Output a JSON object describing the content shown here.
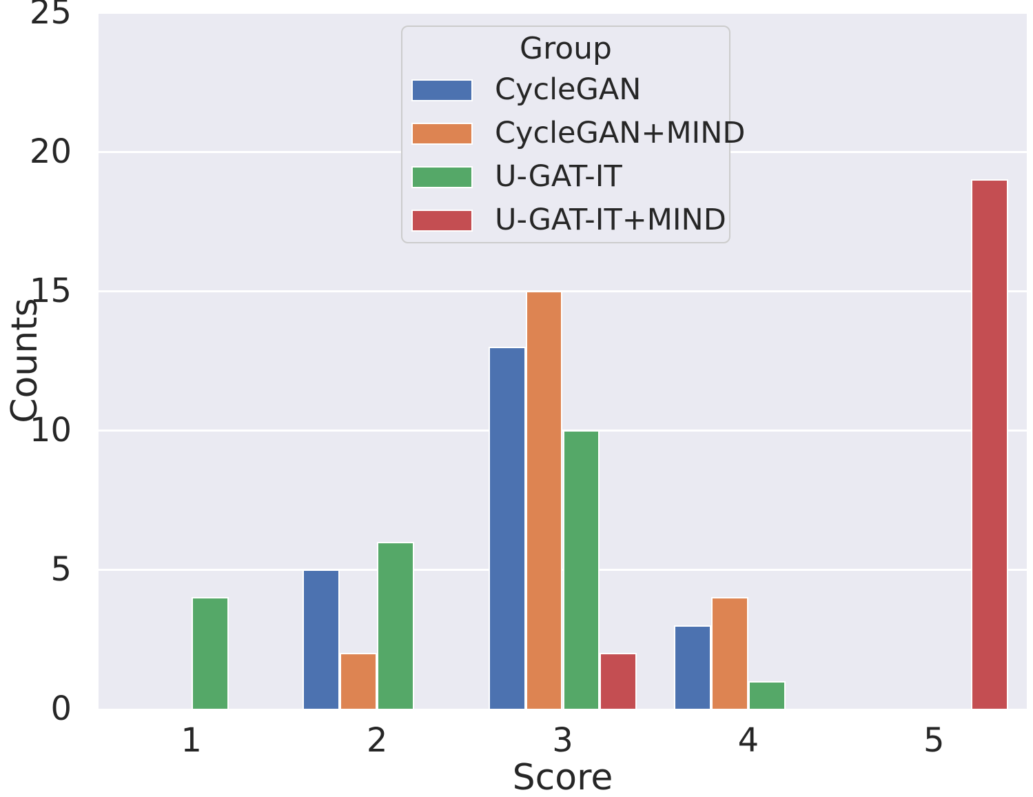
{
  "chart_data": {
    "type": "bar",
    "title": "",
    "xlabel": "Score",
    "ylabel": "Counts",
    "categories": [
      "1",
      "2",
      "3",
      "4",
      "5"
    ],
    "series": [
      {
        "name": "CycleGAN",
        "color": "#4c72b0",
        "values": [
          0,
          5,
          13,
          3,
          0
        ]
      },
      {
        "name": "CycleGAN+MIND",
        "color": "#dd8452",
        "values": [
          0,
          2,
          15,
          4,
          0
        ]
      },
      {
        "name": "U-GAT-IT",
        "color": "#55a868",
        "values": [
          4,
          6,
          10,
          1,
          0
        ]
      },
      {
        "name": "U-GAT-IT+MIND",
        "color": "#c44e52",
        "values": [
          0,
          0,
          2,
          0,
          19
        ]
      }
    ],
    "legend": {
      "title": "Group",
      "position": "upper center"
    },
    "ylim": [
      0,
      25
    ],
    "yticks": [
      0,
      5,
      10,
      15,
      20,
      25
    ],
    "grid": true,
    "group_width": 0.8,
    "style": {
      "plot_background": "#eaeaf2",
      "gridline_color": "#ffffff",
      "bar_edge_color": "#ffffff",
      "text_color": "#262626",
      "legend_background": "#eaeaf2",
      "legend_border_color": "#cccccc"
    }
  }
}
